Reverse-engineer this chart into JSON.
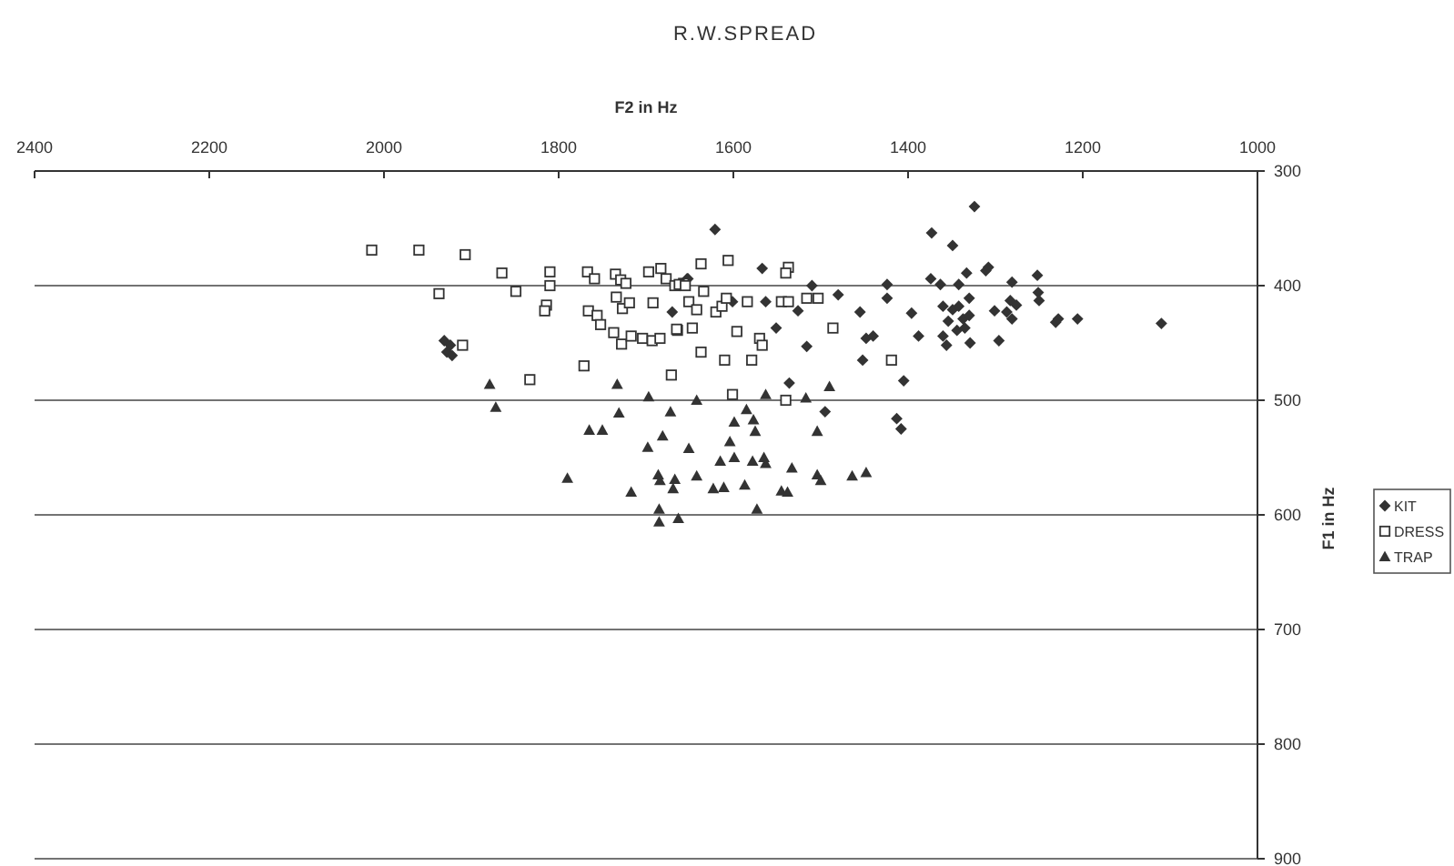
{
  "chart_data": {
    "type": "scatter",
    "title": "R.W.SPREAD",
    "xlabel": "F2 in Hz",
    "ylabel": "F1 in Hz",
    "xlim": [
      2400,
      1000
    ],
    "xticks": [
      2400,
      2200,
      2000,
      1800,
      1600,
      1400,
      1200,
      1000
    ],
    "ylim": [
      900,
      300
    ],
    "yticks": [
      300,
      400,
      500,
      600,
      700,
      800,
      900
    ],
    "grid": "y",
    "legend": "right",
    "series": [
      {
        "name": "KIT",
        "color": "#333333",
        "marker": "diamond",
        "x": [
          1931,
          1924,
          1928,
          1922,
          1653,
          1670,
          1621,
          1567,
          1652,
          1510,
          1601,
          1563,
          1526,
          1551,
          1516,
          1480,
          1455,
          1448,
          1440,
          1452,
          1424,
          1424,
          1396,
          1388,
          1405,
          1536,
          1495,
          1413,
          1408,
          1373,
          1349,
          1324,
          1333,
          1374,
          1363,
          1342,
          1330,
          1360,
          1349,
          1342,
          1354,
          1337,
          1330,
          1335,
          1344,
          1360,
          1356,
          1329,
          1311,
          1308,
          1281,
          1252,
          1251,
          1250,
          1301,
          1283,
          1276,
          1287,
          1281,
          1296,
          1231,
          1228,
          1206,
          1110
        ],
        "values": [
          448,
          452,
          458,
          461,
          394,
          423,
          351,
          385,
          394,
          400,
          414,
          414,
          422,
          437,
          453,
          408,
          423,
          446,
          444,
          465,
          399,
          411,
          424,
          444,
          483,
          485,
          510,
          516,
          525,
          354,
          365,
          331,
          389,
          394,
          399,
          399,
          411,
          418,
          421,
          418,
          431,
          429,
          426,
          437,
          439,
          444,
          452,
          450,
          387,
          384,
          397,
          391,
          406,
          413,
          422,
          413,
          417,
          423,
          429,
          448,
          432,
          429,
          429,
          433
        ]
      },
      {
        "name": "DRESS",
        "color": "#333333",
        "marker": "square",
        "x": [
          2014,
          1960,
          1907,
          1865,
          1937,
          1849,
          1810,
          1810,
          1814,
          1816,
          1767,
          1759,
          1766,
          1756,
          1752,
          1735,
          1729,
          1723,
          1734,
          1727,
          1719,
          1737,
          1728,
          1717,
          1704,
          1693,
          1684,
          1697,
          1683,
          1677,
          1667,
          1657,
          1692,
          1664,
          1910,
          1833,
          1771,
          1671,
          1637,
          1606,
          1537,
          1540,
          1662,
          1655,
          1634,
          1651,
          1642,
          1620,
          1613,
          1608,
          1584,
          1545,
          1537,
          1516,
          1503,
          1665,
          1647,
          1596,
          1570,
          1567,
          1486,
          1637,
          1610,
          1579,
          1419,
          1601,
          1540
        ],
        "values": [
          369,
          369,
          373,
          389,
          407,
          405,
          388,
          400,
          417,
          422,
          388,
          394,
          422,
          426,
          434,
          390,
          395,
          398,
          410,
          420,
          415,
          441,
          451,
          444,
          446,
          448,
          446,
          388,
          385,
          394,
          400,
          398,
          415,
          439,
          452,
          482,
          470,
          478,
          381,
          378,
          384,
          389,
          399,
          400,
          405,
          414,
          421,
          423,
          418,
          411,
          414,
          414,
          414,
          411,
          411,
          438,
          437,
          440,
          446,
          452,
          437,
          458,
          465,
          465,
          465,
          495,
          500
        ]
      },
      {
        "name": "TRAP",
        "color": "#333333",
        "marker": "triangle",
        "x": [
          1879,
          1872,
          1733,
          1731,
          1697,
          1672,
          1765,
          1750,
          1681,
          1698,
          1790,
          1717,
          1686,
          1684,
          1667,
          1669,
          1685,
          1685,
          1642,
          1563,
          1517,
          1490,
          1585,
          1599,
          1577,
          1575,
          1504,
          1604,
          1651,
          1615,
          1599,
          1578,
          1565,
          1563,
          1533,
          1642,
          1623,
          1611,
          1587,
          1545,
          1538,
          1504,
          1500,
          1464,
          1448,
          1573,
          1663
        ],
        "values": [
          486,
          506,
          486,
          511,
          497,
          510,
          526,
          526,
          531,
          541,
          568,
          580,
          565,
          570,
          569,
          577,
          595,
          606,
          500,
          495,
          498,
          488,
          508,
          519,
          517,
          527,
          527,
          536,
          542,
          553,
          550,
          553,
          550,
          555,
          559,
          566,
          577,
          576,
          574,
          579,
          580,
          565,
          570,
          566,
          563,
          595,
          603
        ]
      }
    ]
  }
}
